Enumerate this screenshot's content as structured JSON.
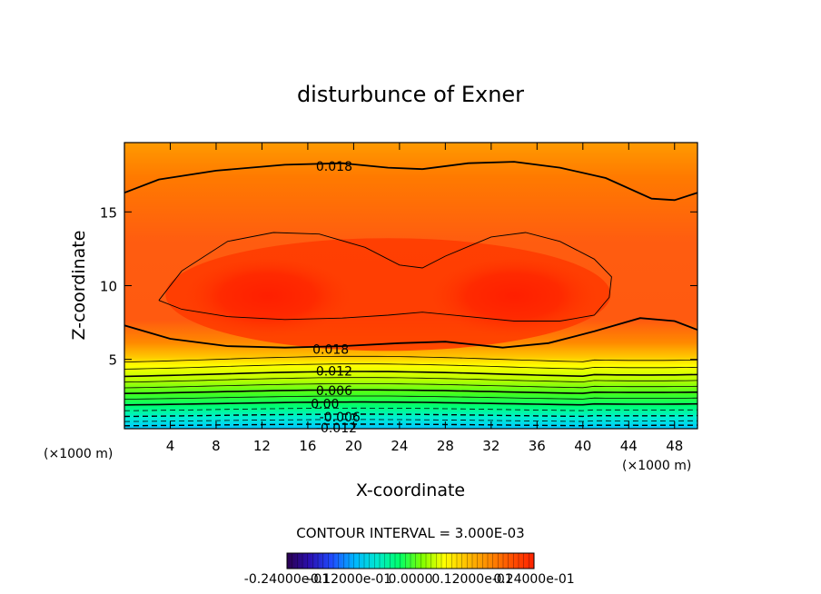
{
  "chart_data": {
    "type": "contour",
    "title": "disturbunce of Exner",
    "xlabel": "X-coordinate",
    "ylabel": "Z-coordinate",
    "x_units_left": "(×1000 m)",
    "x_units_right": "(×1000 m)",
    "xlim": [
      0,
      50
    ],
    "ylim": [
      0.3,
      19.7
    ],
    "x_ticks": [
      4,
      8,
      12,
      16,
      20,
      24,
      28,
      32,
      36,
      40,
      44,
      48
    ],
    "y_ticks": [
      5,
      10,
      15
    ],
    "contour_interval_text": "CONTOUR INTERVAL = 3.000E-03",
    "contour_labels": [
      {
        "text": "0.018",
        "x": 18.3,
        "y": 18.1
      },
      {
        "text": "0.018",
        "x": 18.0,
        "y": 5.7
      },
      {
        "text": "0.012",
        "x": 18.3,
        "y": 4.2
      },
      {
        "text": "0.006",
        "x": 18.3,
        "y": 2.9
      },
      {
        "text": "0.00",
        "x": 17.5,
        "y": 2.0
      },
      {
        "text": "-0.006",
        "x": 18.8,
        "y": 1.1
      },
      {
        "text": "-0.012",
        "x": 18.5,
        "y": 0.35
      }
    ],
    "maxima": [
      {
        "x": 12.5,
        "z": 9.3
      },
      {
        "x": 34.0,
        "z": 9.3
      }
    ],
    "colorbar": {
      "colors": [
        "#2a004f",
        "#2b0fb0",
        "#1f4cff",
        "#00b6ff",
        "#00e8d0",
        "#00ff6a",
        "#7cff00",
        "#ffff00",
        "#ffbf00",
        "#ff8a00",
        "#ff5000",
        "#ff2200"
      ],
      "tick_labels": [
        "-0.24000e-01",
        "-0.12000e-01",
        "0.0000",
        "0.12000e-01",
        "0.24000e-01"
      ]
    }
  }
}
